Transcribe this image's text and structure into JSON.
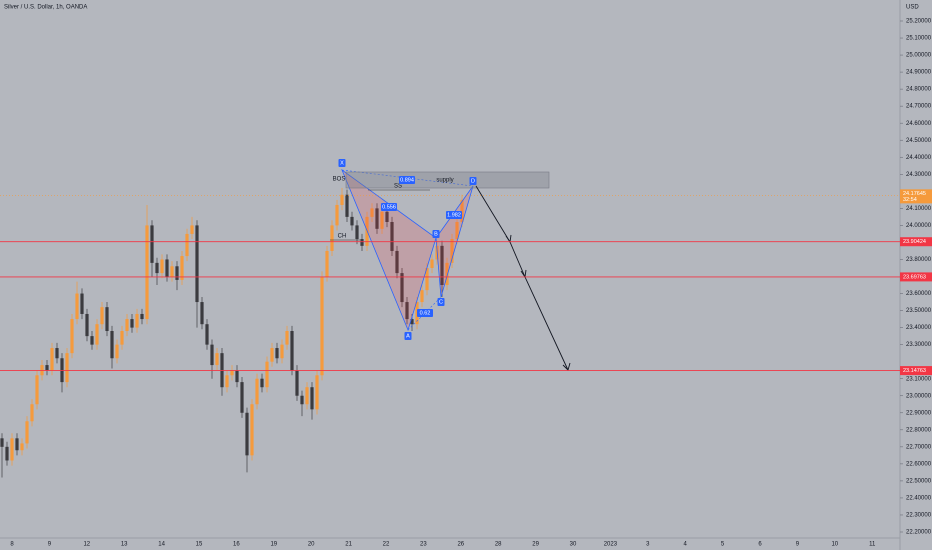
{
  "chart_data": {
    "type": "candlestick",
    "title": "Silver / U.S. Dollar, 1h, OANDA",
    "currency": "USD",
    "up_color": "#f59a3c",
    "down_color": "#3b3b3f",
    "level_color": "#f23645",
    "ylim": [
      22.2,
      25.2
    ],
    "yticks": [
      {
        "value": 25.2,
        "label": "25.20000"
      },
      {
        "value": 25.1,
        "label": "25.10000"
      },
      {
        "value": 25.0,
        "label": "25.00000"
      },
      {
        "value": 24.9,
        "label": "24.90000"
      },
      {
        "value": 24.8,
        "label": "24.80000"
      },
      {
        "value": 24.7,
        "label": "24.70000"
      },
      {
        "value": 24.6,
        "label": "24.60000"
      },
      {
        "value": 24.5,
        "label": "24.50000"
      },
      {
        "value": 24.4,
        "label": "24.40000"
      },
      {
        "value": 24.3,
        "label": "24.30000"
      },
      {
        "value": 24.1,
        "label": "24.10000"
      },
      {
        "value": 24.0,
        "label": "24.00000"
      },
      {
        "value": 23.8,
        "label": "23.80000"
      },
      {
        "value": 23.6,
        "label": "23.60000"
      },
      {
        "value": 23.5,
        "label": "23.50000"
      },
      {
        "value": 23.4,
        "label": "23.40000"
      },
      {
        "value": 23.3,
        "label": "23.30000"
      },
      {
        "value": 23.1,
        "label": "23.10000"
      },
      {
        "value": 23.0,
        "label": "23.00000"
      },
      {
        "value": 22.9,
        "label": "22.90000"
      },
      {
        "value": 22.8,
        "label": "22.80000"
      },
      {
        "value": 22.7,
        "label": "22.70000"
      },
      {
        "value": 22.6,
        "label": "22.60000"
      },
      {
        "value": 22.5,
        "label": "22.50000"
      },
      {
        "value": 22.4,
        "label": "22.40000"
      },
      {
        "value": 22.3,
        "label": "22.30000"
      },
      {
        "value": 22.2,
        "label": "22.20000"
      }
    ],
    "xlabels": [
      "8",
      "9",
      "12",
      "13",
      "14",
      "15",
      "16",
      "19",
      "20",
      "21",
      "22",
      "23",
      "26",
      "28",
      "29",
      "30",
      "2023",
      "3",
      "4",
      "5",
      "6",
      "9",
      "10",
      "11"
    ],
    "levels": [
      23.90424,
      23.69763,
      23.14763
    ],
    "last_price": 24.17645,
    "countdown": "32:54",
    "candles": [
      [
        22.75,
        22.78,
        22.52,
        22.7
      ],
      [
        22.7,
        22.73,
        22.59,
        22.62
      ],
      [
        22.62,
        22.78,
        22.59,
        22.75
      ],
      [
        22.75,
        22.78,
        22.65,
        22.68
      ],
      [
        22.68,
        22.75,
        22.65,
        22.72
      ],
      [
        22.72,
        22.88,
        22.69,
        22.85
      ],
      [
        22.85,
        22.98,
        22.82,
        22.95
      ],
      [
        22.95,
        23.15,
        22.92,
        23.12
      ],
      [
        23.12,
        23.21,
        23.09,
        23.18
      ],
      [
        23.18,
        23.21,
        23.12,
        23.15
      ],
      [
        23.15,
        23.31,
        23.12,
        23.28
      ],
      [
        23.28,
        23.31,
        23.19,
        23.22
      ],
      [
        23.22,
        23.25,
        23.02,
        23.08
      ],
      [
        23.08,
        23.28,
        23.05,
        23.25
      ],
      [
        23.25,
        23.48,
        23.22,
        23.45
      ],
      [
        23.45,
        23.67,
        23.42,
        23.6
      ],
      [
        23.6,
        23.63,
        23.45,
        23.48
      ],
      [
        23.48,
        23.51,
        23.32,
        23.35
      ],
      [
        23.35,
        23.38,
        23.27,
        23.3
      ],
      [
        23.3,
        23.45,
        23.27,
        23.42
      ],
      [
        23.42,
        23.55,
        23.39,
        23.52
      ],
      [
        23.52,
        23.55,
        23.35,
        23.38
      ],
      [
        23.38,
        23.41,
        23.16,
        23.22
      ],
      [
        23.22,
        23.33,
        23.19,
        23.3
      ],
      [
        23.3,
        23.41,
        23.27,
        23.38
      ],
      [
        23.38,
        23.48,
        23.35,
        23.45
      ],
      [
        23.45,
        23.48,
        23.37,
        23.4
      ],
      [
        23.4,
        23.51,
        23.37,
        23.48
      ],
      [
        23.48,
        23.51,
        23.42,
        23.45
      ],
      [
        23.45,
        24.12,
        23.42,
        24.0
      ],
      [
        24.0,
        24.03,
        23.7,
        23.78
      ],
      [
        23.78,
        23.81,
        23.65,
        23.72
      ],
      [
        23.72,
        23.83,
        23.69,
        23.8
      ],
      [
        23.8,
        23.83,
        23.67,
        23.7
      ],
      [
        23.7,
        23.79,
        23.67,
        23.76
      ],
      [
        23.76,
        23.79,
        23.62,
        23.68
      ],
      [
        23.68,
        23.85,
        23.65,
        23.82
      ],
      [
        23.82,
        23.98,
        23.79,
        23.95
      ],
      [
        23.95,
        24.05,
        23.92,
        24.0
      ],
      [
        24.0,
        24.03,
        23.4,
        23.55
      ],
      [
        23.55,
        23.58,
        23.39,
        23.42
      ],
      [
        23.42,
        23.45,
        23.27,
        23.3
      ],
      [
        23.3,
        23.33,
        23.1,
        23.18
      ],
      [
        23.18,
        23.28,
        23.15,
        23.25
      ],
      [
        23.25,
        23.28,
        23.0,
        23.05
      ],
      [
        23.05,
        23.15,
        23.02,
        23.12
      ],
      [
        23.12,
        23.18,
        23.09,
        23.15
      ],
      [
        23.15,
        23.18,
        23.05,
        23.08
      ],
      [
        23.08,
        23.11,
        22.87,
        22.9
      ],
      [
        22.9,
        22.93,
        22.55,
        22.65
      ],
      [
        22.65,
        22.98,
        22.62,
        22.95
      ],
      [
        22.95,
        23.13,
        22.92,
        23.1
      ],
      [
        23.1,
        23.13,
        23.02,
        23.05
      ],
      [
        23.05,
        23.23,
        23.02,
        23.2
      ],
      [
        23.2,
        23.31,
        23.17,
        23.28
      ],
      [
        23.28,
        23.31,
        23.19,
        23.22
      ],
      [
        23.22,
        23.33,
        23.19,
        23.3
      ],
      [
        23.3,
        23.41,
        23.27,
        23.38
      ],
      [
        23.38,
        23.41,
        23.12,
        23.15
      ],
      [
        23.15,
        23.18,
        22.97,
        23.0
      ],
      [
        23.0,
        23.03,
        22.88,
        22.95
      ],
      [
        22.95,
        23.08,
        22.92,
        23.05
      ],
      [
        23.05,
        23.08,
        22.86,
        22.92
      ],
      [
        22.92,
        23.15,
        22.89,
        23.12
      ],
      [
        23.12,
        23.73,
        23.09,
        23.7
      ],
      [
        23.7,
        23.88,
        23.67,
        23.85
      ],
      [
        23.85,
        24.03,
        23.82,
        24.0
      ],
      [
        24.0,
        24.15,
        23.97,
        24.12
      ],
      [
        24.12,
        24.22,
        24.09,
        24.18
      ],
      [
        24.18,
        24.21,
        24.02,
        24.05
      ],
      [
        24.05,
        24.08,
        23.97,
        24.0
      ],
      [
        24.0,
        24.03,
        23.89,
        23.92
      ],
      [
        23.92,
        23.95,
        23.85,
        23.88
      ],
      [
        23.88,
        24.08,
        23.85,
        24.05
      ],
      [
        24.05,
        24.13,
        24.02,
        24.1
      ],
      [
        24.1,
        24.13,
        23.95,
        23.98
      ],
      [
        23.98,
        24.11,
        23.95,
        24.08
      ],
      [
        24.08,
        24.11,
        23.99,
        24.02
      ],
      [
        24.02,
        24.05,
        23.82,
        23.85
      ],
      [
        23.85,
        23.88,
        23.69,
        23.72
      ],
      [
        23.72,
        23.75,
        23.52,
        23.55
      ],
      [
        23.55,
        23.58,
        23.42,
        23.45
      ],
      [
        23.45,
        23.48,
        23.38,
        23.42
      ],
      [
        23.42,
        23.58,
        23.39,
        23.55
      ],
      [
        23.55,
        23.65,
        23.52,
        23.62
      ],
      [
        23.62,
        23.78,
        23.59,
        23.75
      ],
      [
        23.75,
        23.83,
        23.72,
        23.8
      ],
      [
        23.8,
        23.91,
        23.77,
        23.88
      ],
      [
        23.88,
        23.91,
        23.58,
        23.65
      ],
      [
        23.65,
        23.81,
        23.62,
        23.78
      ],
      [
        23.78,
        23.95,
        23.75,
        23.92
      ],
      [
        23.92,
        24.05,
        23.89,
        24.02
      ],
      [
        24.02,
        24.18,
        23.99,
        24.15
      ]
    ],
    "annotations": {
      "points": [
        "X",
        "A",
        "B",
        "C",
        "D"
      ],
      "ratios": [
        "0.894",
        "0.556",
        "0.62",
        "1.982"
      ],
      "bos": "BOS",
      "ss": "SS",
      "ch": "CH",
      "supply": "supply"
    }
  }
}
